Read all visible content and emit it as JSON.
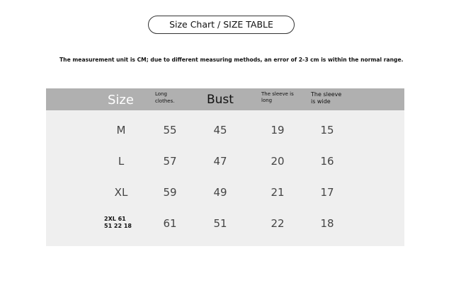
{
  "title": "Size Chart / SIZE TABLE",
  "note": "The measurement unit is CM; due to different measuring methods, an error of 2-3 cm is within the normal range.",
  "headers": [
    "Size",
    "Long clothes.",
    "Bust",
    "The sleeve is long",
    "The sleeve is wide"
  ],
  "rows": [
    {
      "size": "M",
      "length": "55",
      "bust": "45",
      "sleeve_length": "19",
      "sleeve_width": "15"
    },
    {
      "size": "L",
      "length": "57",
      "bust": "47",
      "sleeve_length": "20",
      "sleeve_width": "16"
    },
    {
      "size": "XL",
      "length": "59",
      "bust": "49",
      "sleeve_length": "21",
      "sleeve_width": "17"
    },
    {
      "size": "2XL 61 51 22 18",
      "length": "61",
      "bust": "51",
      "sleeve_length": "22",
      "sleeve_width": "18"
    }
  ]
}
